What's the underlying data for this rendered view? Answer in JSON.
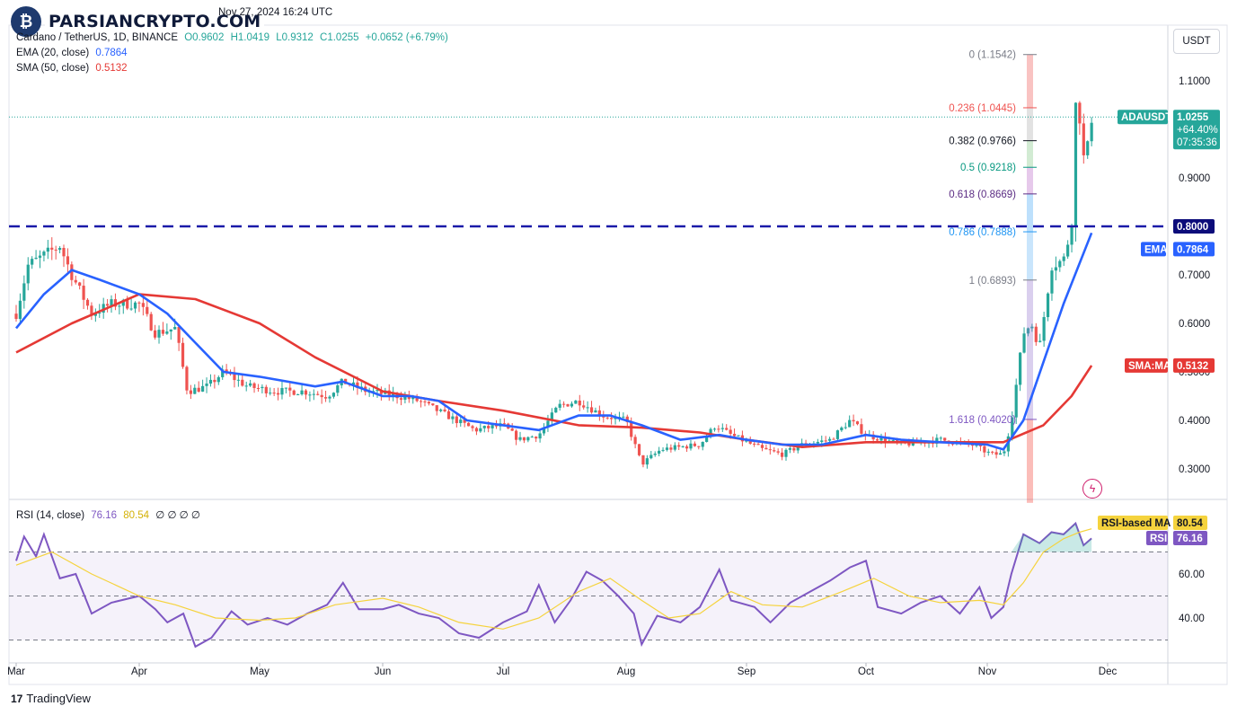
{
  "header": {
    "timestamp": "Nov 27, 2024 16:24 UTC",
    "symbol_line": {
      "symbol": "Cardano / TetherUS, 1D, BINANCE",
      "open": "O0.9602",
      "high": "H1.0419",
      "low": "L0.9312",
      "close": "C1.0255",
      "change": "+0.0652 (+6.79%)"
    },
    "ema": {
      "label": "EMA (20, close)",
      "value": "0.7864"
    },
    "sma": {
      "label": "SMA (50, close)",
      "value": "0.5132"
    },
    "rsi": {
      "label": "RSI (14, close)",
      "value": "76.16",
      "ma_value": "80.54",
      "extra": "∅ ∅ ∅ ∅"
    }
  },
  "brand": {
    "name": "PARSIANCRYPTO.COM"
  },
  "footer": {
    "tradingview": "TradingView",
    "logo_text": "17"
  },
  "currency_button": "USDT",
  "colors": {
    "up": "#26a69a",
    "down": "#ef5350",
    "ema": "#2962ff",
    "sma": "#e53935",
    "rsi": "#7e57c2",
    "rsi_ma": "#f5d33d",
    "level_line": "#1a1aa8"
  },
  "chart_data": {
    "type": "candlestick",
    "title": "Cardano / TetherUS, 1D, BINANCE",
    "x_labels": [
      "Mar",
      "Apr",
      "May",
      "Jun",
      "Jul",
      "Aug",
      "Sep",
      "Oct",
      "Nov",
      "Dec"
    ],
    "y_ticks": [
      "1.1000",
      "0.9000",
      "0.8000",
      "0.7000",
      "0.6000",
      "0.5000",
      "0.4000",
      "0.3000"
    ],
    "ylim": [
      0.23,
      1.2
    ],
    "horizontal_level": {
      "value": 0.8,
      "label": "0.8000",
      "style": "dashed"
    },
    "price_badges": [
      {
        "label": "ADAUSDT",
        "value": "1.0255",
        "pct": "+64.40%",
        "time": "07:35:36"
      },
      {
        "label": "EMA",
        "value": "0.7864"
      },
      {
        "label": "SMA:MA",
        "value": "0.5132"
      }
    ],
    "fibonacci": [
      {
        "level": "0",
        "label": "0 (1.1542)",
        "price": 1.1542
      },
      {
        "level": "0.236",
        "label": "0.236 (1.0445)",
        "price": 1.0445
      },
      {
        "level": "0.382",
        "label": "0.382 (0.9766)",
        "price": 0.9766
      },
      {
        "level": "0.5",
        "label": "0.5 (0.9218)",
        "price": 0.9218
      },
      {
        "level": "0.618",
        "label": "0.618 (0.8669)",
        "price": 0.8669
      },
      {
        "level": "0.786",
        "label": "0.786 (0.7888)",
        "price": 0.7888
      },
      {
        "level": "1",
        "label": "1 (0.6893)",
        "price": 0.6893
      },
      {
        "level": "1.618",
        "label": "1.618 (0.4020)",
        "price": 0.402
      }
    ],
    "ema_points": [
      [
        "Mar 01",
        0.59
      ],
      [
        "Mar 08",
        0.66
      ],
      [
        "Mar 15",
        0.71
      ],
      [
        "Mar 22",
        0.69
      ],
      [
        "Apr 01",
        0.66
      ],
      [
        "Apr 08",
        0.62
      ],
      [
        "Apr 15",
        0.56
      ],
      [
        "Apr 22",
        0.5
      ],
      [
        "May 01",
        0.49
      ],
      [
        "May 15",
        0.47
      ],
      [
        "May 22",
        0.48
      ],
      [
        "Jun 01",
        0.45
      ],
      [
        "Jun 08",
        0.45
      ],
      [
        "Jun 15",
        0.44
      ],
      [
        "Jun 22",
        0.4
      ],
      [
        "Jul 01",
        0.39
      ],
      [
        "Jul 10",
        0.38
      ],
      [
        "Jul 20",
        0.41
      ],
      [
        "Jul 28",
        0.41
      ],
      [
        "Aug 05",
        0.39
      ],
      [
        "Aug 15",
        0.36
      ],
      [
        "Aug 25",
        0.37
      ],
      [
        "Sep 01",
        0.36
      ],
      [
        "Sep 10",
        0.35
      ],
      [
        "Sep 20",
        0.35
      ],
      [
        "Oct 01",
        0.37
      ],
      [
        "Oct 10",
        0.36
      ],
      [
        "Oct 20",
        0.355
      ],
      [
        "Nov 01",
        0.35
      ],
      [
        "Nov 05",
        0.34
      ],
      [
        "Nov 10",
        0.4
      ],
      [
        "Nov 15",
        0.52
      ],
      [
        "Nov 20",
        0.64
      ],
      [
        "Nov 27",
        0.7864
      ]
    ],
    "sma_points": [
      [
        "Mar 01",
        0.54
      ],
      [
        "Mar 15",
        0.6
      ],
      [
        "Apr 01",
        0.66
      ],
      [
        "Apr 15",
        0.65
      ],
      [
        "May 01",
        0.6
      ],
      [
        "May 15",
        0.53
      ],
      [
        "Jun 01",
        0.46
      ],
      [
        "Jun 15",
        0.44
      ],
      [
        "Jul 01",
        0.42
      ],
      [
        "Jul 20",
        0.39
      ],
      [
        "Aug 05",
        0.385
      ],
      [
        "Aug 20",
        0.375
      ],
      [
        "Sep 01",
        0.36
      ],
      [
        "Sep 15",
        0.345
      ],
      [
        "Oct 01",
        0.355
      ],
      [
        "Oct 20",
        0.355
      ],
      [
        "Nov 05",
        0.355
      ],
      [
        "Nov 15",
        0.39
      ],
      [
        "Nov 22",
        0.45
      ],
      [
        "Nov 27",
        0.5132
      ]
    ],
    "rsi_ticks": [
      "60.00",
      "40.00"
    ],
    "rsi_ylim": [
      20,
      90
    ],
    "rsi_bands": [
      70,
      50,
      30
    ],
    "rsi_badges": [
      {
        "label": "RSI-based MA",
        "value": "80.54"
      },
      {
        "label": "RSI",
        "value": "76.16"
      }
    ]
  }
}
